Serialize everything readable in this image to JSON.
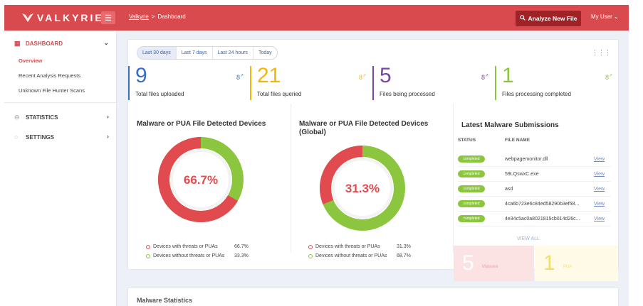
{
  "brand": {
    "name": "VALKYRIE"
  },
  "breadcrumb": {
    "root": "Valkyrie",
    "sep": ">",
    "current": "Dashboard"
  },
  "topbar": {
    "analyze_label": "Analyze New File",
    "user_label": "My User",
    "user_caret": "⌄"
  },
  "sidebar": {
    "sections": [
      {
        "label": "DASHBOARD",
        "chevron": "⌄"
      },
      {
        "label": "STATISTICS",
        "chevron": "›"
      },
      {
        "label": "SETTINGS",
        "chevron": "›"
      }
    ],
    "sub_items": [
      {
        "label": "Overview"
      },
      {
        "label": "Recent Analysis Requests"
      },
      {
        "label": "Unknown File Hunter Scans"
      }
    ]
  },
  "tabs": [
    {
      "label": "Last 30 days"
    },
    {
      "label": "Last 7 days"
    },
    {
      "label": "Last 24 hours"
    },
    {
      "label": "Today"
    }
  ],
  "stats": [
    {
      "value": "9",
      "label": "Total files uploaded",
      "color": "#3b6fc2",
      "icon": "stats-icon"
    },
    {
      "value": "21",
      "label": "Total files queried",
      "color": "#f5b800",
      "icon": "stats-icon"
    },
    {
      "value": "5",
      "label": "Files being processed",
      "color": "#7a45a6",
      "icon": "stats-icon"
    },
    {
      "value": "1",
      "label": "Files processing completed",
      "color": "#8cc63f",
      "icon": "stats-icon"
    }
  ],
  "charts": {
    "device": {
      "title": "Malware or PUA File Detected Devices",
      "center": "66.7%",
      "percent": 66.7,
      "legend": [
        {
          "label": "Devices with threats or PUAs",
          "value": "66.7%",
          "color": "#e14a4f"
        },
        {
          "label": "Devices without threats or PUAs",
          "value": "33.3%",
          "color": "#8cc63f"
        }
      ]
    },
    "global": {
      "title": "Malware or PUA File Detected Devices (Global)",
      "center": "31.3%",
      "percent": 31.3,
      "legend": [
        {
          "label": "Devices with threats or PUAs",
          "value": "31.3%",
          "color": "#e14a4f"
        },
        {
          "label": "Devices without threats or PUAs",
          "value": "68.7%",
          "color": "#8cc63f"
        }
      ]
    }
  },
  "submissions": {
    "title": "Latest Malware Submissions",
    "col_status": "STATUS",
    "col_file": "FILE NAME",
    "rows": [
      {
        "status": "completed",
        "file": "webpagemonitor.dll",
        "action": "View"
      },
      {
        "status": "completed",
        "file": "59LQswxC.exe",
        "action": "View"
      },
      {
        "status": "completed",
        "file": "asd",
        "action": "View"
      },
      {
        "status": "completed",
        "file": "4ca6b723e6c84ed58290b3ef68...",
        "action": "View"
      },
      {
        "status": "completed",
        "file": "4e34c5ac0a8021815cb014d26c...",
        "action": "View"
      }
    ],
    "view_all": "VIEW ALL"
  },
  "mini_stats": [
    {
      "value": "5",
      "label": "Malware",
      "bg": "#fbe3e4",
      "color": "#f0a3a6"
    },
    {
      "value": "1",
      "label": "PUA",
      "bg": "#fffbe8",
      "color": "#f5dd6a"
    }
  ],
  "bottom_card": {
    "title": "Malware Statistics"
  },
  "colors": {
    "accent": "#d94a4e",
    "danger": "#e14a4f",
    "success": "#8cc63f"
  }
}
